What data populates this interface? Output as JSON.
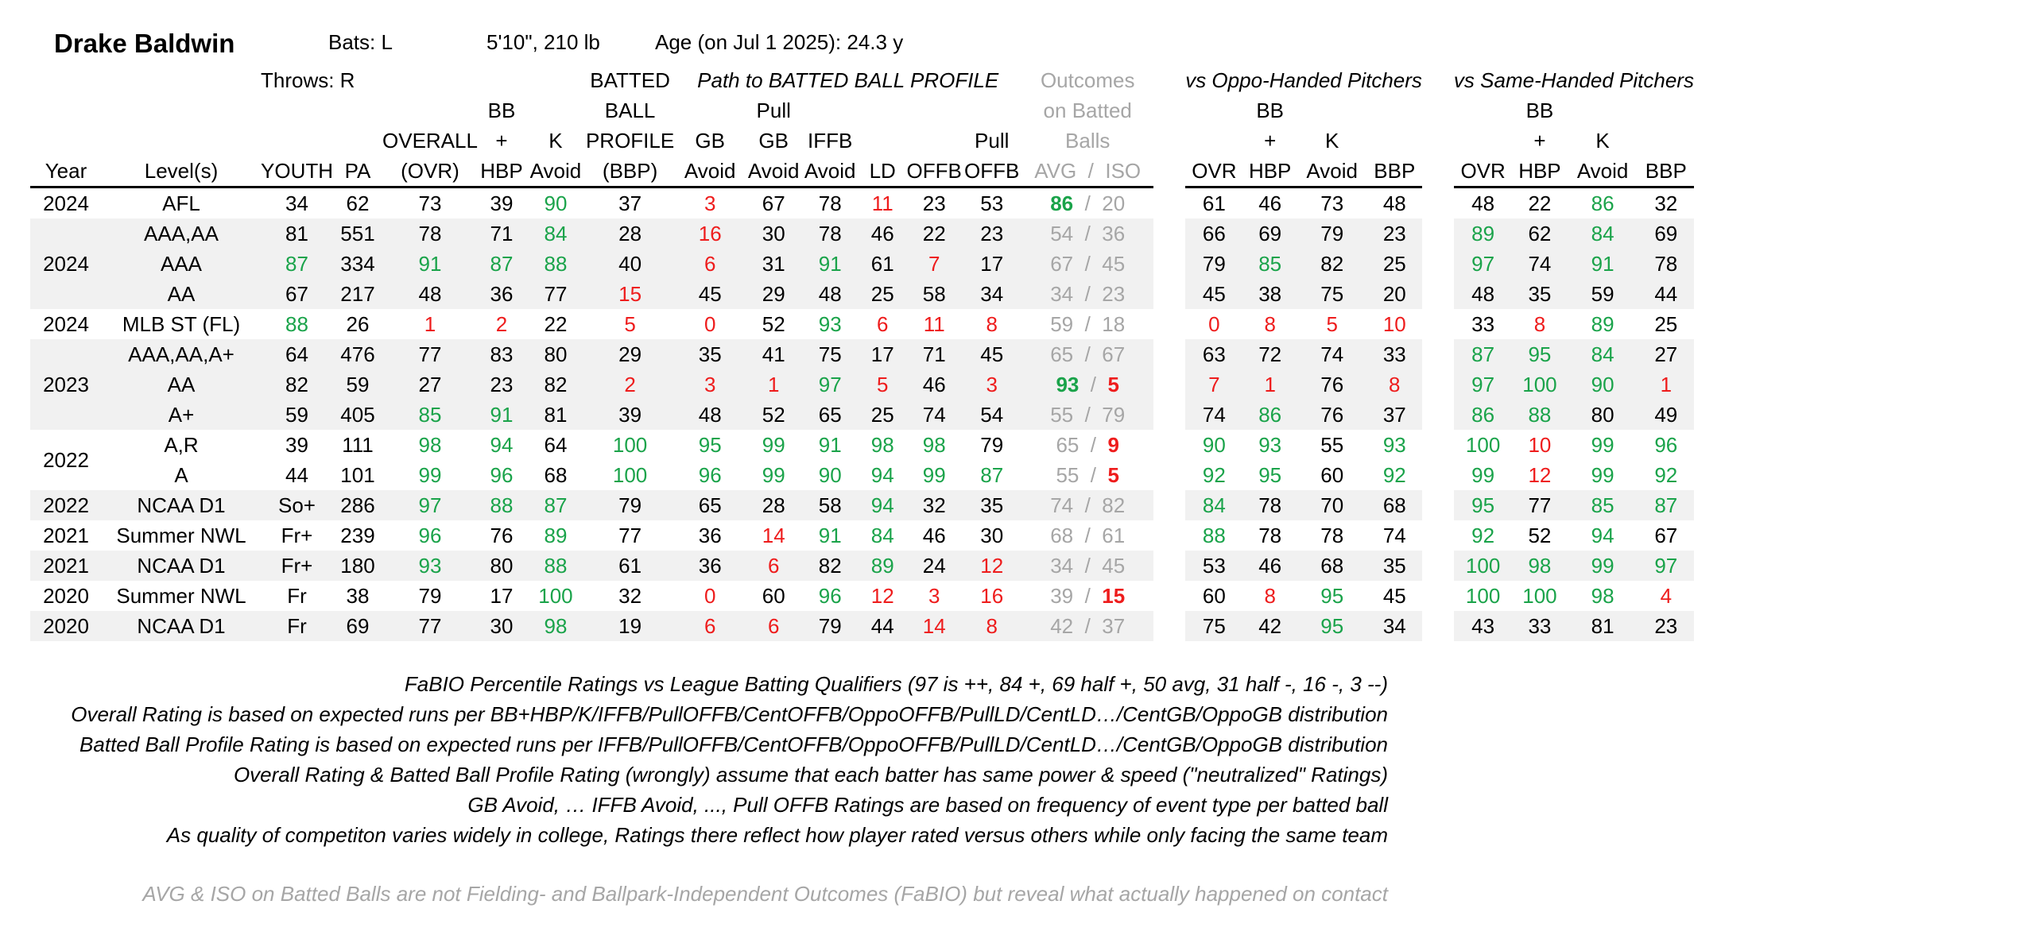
{
  "player": {
    "name": "Drake Baldwin",
    "bats": "Bats: L",
    "throws": "Throws: R",
    "size": "5'10\", 210 lb",
    "age": "Age (on Jul 1 2025): 24.3 y"
  },
  "headers": {
    "batted_ball_profile_group": "Path to BATTED BALL PROFILE",
    "outcomes_line1": "Outcomes",
    "outcomes_line2": "on Batted",
    "outcomes_line3": "Balls",
    "oppo_group": "vs Oppo-Handed Pitchers",
    "same_group": "vs Same-Handed Pitchers",
    "year": "Year",
    "levels": "Level(s)",
    "youth": "YOUTH",
    "pa": "PA",
    "overall_l1": "OVERALL",
    "overall_l2": "(OVR)",
    "bb_l1": "BB",
    "bb_l2": "+",
    "bb_l3": "HBP",
    "k_l1": "K",
    "k_l2": "Avoid",
    "bbp_l1": "BATTED",
    "bbp_l2": "BALL",
    "bbp_l3": "PROFILE",
    "bbp_l4": "(BBP)",
    "gb_l1": "GB",
    "gb_l2": "Avoid",
    "pgb_l1": "Pull",
    "pgb_l2": "GB",
    "pgb_l3": "Avoid",
    "iffb_l1": "IFFB",
    "iffb_l2": "Avoid",
    "ld": "LD",
    "offb": "OFFB",
    "poffb_l1": "Pull",
    "poffb_l2": "OFFB",
    "avg": "AVG",
    "slash": "/",
    "iso": "ISO",
    "ovr": "OVR",
    "bbp": "BBP"
  },
  "rows": [
    {
      "year": "2024",
      "level": "AFL",
      "youth": "34",
      "pa": "62",
      "ovr": "73",
      "bb": "39",
      "k": "90",
      "bbp": "37",
      "gb": "3",
      "pgb": "67",
      "iffb": "78",
      "ld": "11",
      "offb": "23",
      "poffb": "53",
      "avg": "86",
      "iso": "20",
      "o_ovr": "61",
      "o_bb": "46",
      "o_k": "73",
      "o_bbp": "48",
      "s_ovr": "48",
      "s_bb": "22",
      "s_k": "86",
      "s_bbp": "32"
    },
    {
      "year": "",
      "level": "AAA,AA",
      "youth": "81",
      "pa": "551",
      "ovr": "78",
      "bb": "71",
      "k": "84",
      "bbp": "28",
      "gb": "16",
      "pgb": "30",
      "iffb": "78",
      "ld": "46",
      "offb": "22",
      "poffb": "23",
      "avg": "54",
      "iso": "36",
      "o_ovr": "66",
      "o_bb": "69",
      "o_k": "79",
      "o_bbp": "23",
      "s_ovr": "89",
      "s_bb": "62",
      "s_k": "84",
      "s_bbp": "69"
    },
    {
      "year": "2024",
      "level": "AAA",
      "youth": "87",
      "pa": "334",
      "ovr": "91",
      "bb": "87",
      "k": "88",
      "bbp": "40",
      "gb": "6",
      "pgb": "31",
      "iffb": "91",
      "ld": "61",
      "offb": "7",
      "poffb": "17",
      "avg": "67",
      "iso": "45",
      "o_ovr": "79",
      "o_bb": "85",
      "o_k": "82",
      "o_bbp": "25",
      "s_ovr": "97",
      "s_bb": "74",
      "s_k": "91",
      "s_bbp": "78"
    },
    {
      "year": "",
      "level": "AA",
      "youth": "67",
      "pa": "217",
      "ovr": "48",
      "bb": "36",
      "k": "77",
      "bbp": "15",
      "gb": "45",
      "pgb": "29",
      "iffb": "48",
      "ld": "25",
      "offb": "58",
      "poffb": "34",
      "avg": "34",
      "iso": "23",
      "o_ovr": "45",
      "o_bb": "38",
      "o_k": "75",
      "o_bbp": "20",
      "s_ovr": "48",
      "s_bb": "35",
      "s_k": "59",
      "s_bbp": "44"
    },
    {
      "year": "2024",
      "level": "MLB ST (FL)",
      "youth": "88",
      "pa": "26",
      "ovr": "1",
      "bb": "2",
      "k": "22",
      "bbp": "5",
      "gb": "0",
      "pgb": "52",
      "iffb": "93",
      "ld": "6",
      "offb": "11",
      "poffb": "8",
      "avg": "59",
      "iso": "18",
      "o_ovr": "0",
      "o_bb": "8",
      "o_k": "5",
      "o_bbp": "10",
      "s_ovr": "33",
      "s_bb": "8",
      "s_k": "89",
      "s_bbp": "25"
    },
    {
      "year": "",
      "level": "AAA,AA,A+",
      "youth": "64",
      "pa": "476",
      "ovr": "77",
      "bb": "83",
      "k": "80",
      "bbp": "29",
      "gb": "35",
      "pgb": "41",
      "iffb": "75",
      "ld": "17",
      "offb": "71",
      "poffb": "45",
      "avg": "65",
      "iso": "67",
      "o_ovr": "63",
      "o_bb": "72",
      "o_k": "74",
      "o_bbp": "33",
      "s_ovr": "87",
      "s_bb": "95",
      "s_k": "84",
      "s_bbp": "27"
    },
    {
      "year": "2023",
      "level": "AA",
      "youth": "82",
      "pa": "59",
      "ovr": "27",
      "bb": "23",
      "k": "82",
      "bbp": "2",
      "gb": "3",
      "pgb": "1",
      "iffb": "97",
      "ld": "5",
      "offb": "46",
      "poffb": "3",
      "avg": "93",
      "iso": "5",
      "o_ovr": "7",
      "o_bb": "1",
      "o_k": "76",
      "o_bbp": "8",
      "s_ovr": "97",
      "s_bb": "100",
      "s_k": "90",
      "s_bbp": "1"
    },
    {
      "year": "",
      "level": "A+",
      "youth": "59",
      "pa": "405",
      "ovr": "85",
      "bb": "91",
      "k": "81",
      "bbp": "39",
      "gb": "48",
      "pgb": "52",
      "iffb": "65",
      "ld": "25",
      "offb": "74",
      "poffb": "54",
      "avg": "55",
      "iso": "79",
      "o_ovr": "74",
      "o_bb": "86",
      "o_k": "76",
      "o_bbp": "37",
      "s_ovr": "86",
      "s_bb": "88",
      "s_k": "80",
      "s_bbp": "49"
    },
    {
      "year": "",
      "level": "A,R",
      "youth": "39",
      "pa": "111",
      "ovr": "98",
      "bb": "94",
      "k": "64",
      "bbp": "100",
      "gb": "95",
      "pgb": "99",
      "iffb": "91",
      "ld": "98",
      "offb": "98",
      "poffb": "79",
      "avg": "65",
      "iso": "9",
      "o_ovr": "90",
      "o_bb": "93",
      "o_k": "55",
      "o_bbp": "93",
      "s_ovr": "100",
      "s_bb": "10",
      "s_k": "99",
      "s_bbp": "96"
    },
    {
      "year": "2022",
      "level": "A",
      "youth": "44",
      "pa": "101",
      "ovr": "99",
      "bb": "96",
      "k": "68",
      "bbp": "100",
      "gb": "96",
      "pgb": "99",
      "iffb": "90",
      "ld": "94",
      "offb": "99",
      "poffb": "87",
      "avg": "55",
      "iso": "5",
      "o_ovr": "92",
      "o_bb": "95",
      "o_k": "60",
      "o_bbp": "92",
      "s_ovr": "99",
      "s_bb": "12",
      "s_k": "99",
      "s_bbp": "92"
    },
    {
      "year": "2022",
      "level": "NCAA D1",
      "youth": "So+",
      "pa": "286",
      "ovr": "97",
      "bb": "88",
      "k": "87",
      "bbp": "79",
      "gb": "65",
      "pgb": "28",
      "iffb": "58",
      "ld": "94",
      "offb": "32",
      "poffb": "35",
      "avg": "74",
      "iso": "82",
      "o_ovr": "84",
      "o_bb": "78",
      "o_k": "70",
      "o_bbp": "68",
      "s_ovr": "95",
      "s_bb": "77",
      "s_k": "85",
      "s_bbp": "87"
    },
    {
      "year": "2021",
      "level": "Summer NWL",
      "youth": "Fr+",
      "pa": "239",
      "ovr": "96",
      "bb": "76",
      "k": "89",
      "bbp": "77",
      "gb": "36",
      "pgb": "14",
      "iffb": "91",
      "ld": "84",
      "offb": "46",
      "poffb": "30",
      "avg": "68",
      "iso": "61",
      "o_ovr": "88",
      "o_bb": "78",
      "o_k": "78",
      "o_bbp": "74",
      "s_ovr": "92",
      "s_bb": "52",
      "s_k": "94",
      "s_bbp": "67"
    },
    {
      "year": "2021",
      "level": "NCAA D1",
      "youth": "Fr+",
      "pa": "180",
      "ovr": "93",
      "bb": "80",
      "k": "88",
      "bbp": "61",
      "gb": "36",
      "pgb": "6",
      "iffb": "82",
      "ld": "89",
      "offb": "24",
      "poffb": "12",
      "avg": "34",
      "iso": "45",
      "o_ovr": "53",
      "o_bb": "46",
      "o_k": "68",
      "o_bbp": "35",
      "s_ovr": "100",
      "s_bb": "98",
      "s_k": "99",
      "s_bbp": "97"
    },
    {
      "year": "2020",
      "level": "Summer NWL",
      "youth": "Fr",
      "pa": "38",
      "ovr": "79",
      "bb": "17",
      "k": "100",
      "bbp": "32",
      "gb": "0",
      "pgb": "60",
      "iffb": "96",
      "ld": "12",
      "offb": "3",
      "poffb": "16",
      "avg": "39",
      "iso": "15",
      "o_ovr": "60",
      "o_bb": "8",
      "o_k": "95",
      "o_bbp": "45",
      "s_ovr": "100",
      "s_bb": "100",
      "s_k": "98",
      "s_bbp": "4"
    },
    {
      "year": "2020",
      "level": "NCAA D1",
      "youth": "Fr",
      "pa": "69",
      "ovr": "77",
      "bb": "30",
      "k": "98",
      "bbp": "19",
      "gb": "6",
      "pgb": "6",
      "iffb": "79",
      "ld": "44",
      "offb": "14",
      "poffb": "8",
      "avg": "42",
      "iso": "37",
      "o_ovr": "75",
      "o_bb": "42",
      "o_k": "95",
      "o_bbp": "34",
      "s_ovr": "43",
      "s_bb": "33",
      "s_k": "81",
      "s_bbp": "23"
    }
  ],
  "notes": [
    "FaBIO Percentile Ratings vs League Batting Qualifiers (97 is ++, 84 +, 69 half +, 50 avg, 31 half -, 16 -, 3 --)",
    "Overall Rating is based on expected runs per BB+HBP/K/IFFB/PullOFFB/CentOFFB/OppoOFFB/PullLD/CentLD…/CentGB/OppoGB distribution",
    "Batted Ball Profile Rating is based on expected runs per IFFB/PullOFFB/CentOFFB/OppoOFFB/PullLD/CentLD…/CentGB/OppoGB distribution",
    "Overall Rating & Batted Ball Profile Rating (wrongly) assume that each batter has same power & speed (\"neutralized\" Ratings)",
    "GB Avoid, … IFFB Avoid, ..., Pull OFFB Ratings are based on frequency of event type per batted ball",
    "As quality of competiton varies widely in college, Ratings there reflect how player rated versus others while only facing the same team"
  ],
  "footnote": "AVG & ISO on Batted Balls are not Fielding- and Ballpark-Independent Outcomes (FaBIO) but reveal what actually happened on contact",
  "colors": {
    "high": "#1aa34a",
    "low": "#ee1c1c",
    "muted": "#a6a6a6",
    "shade": "#f1f1f1"
  }
}
